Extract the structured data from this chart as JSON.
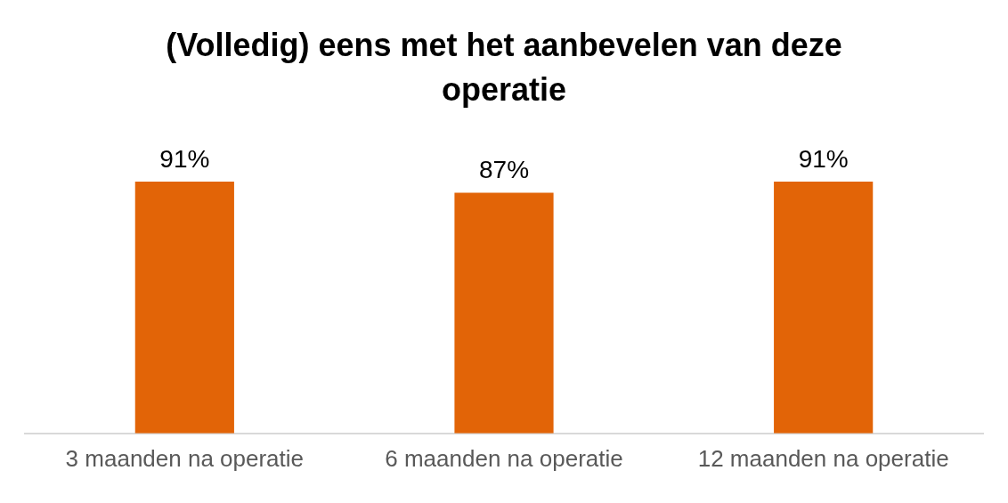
{
  "chart_data": {
    "type": "bar",
    "title": "(Volledig) eens met het aanbevelen van deze operatie",
    "categories": [
      "3 maanden na operatie",
      "6 maanden na operatie",
      "12 maanden na operatie"
    ],
    "values": [
      91,
      87,
      91
    ],
    "value_labels": [
      "91%",
      "87%",
      "91%"
    ],
    "color": "#e26407",
    "grid": false,
    "legend": false
  }
}
